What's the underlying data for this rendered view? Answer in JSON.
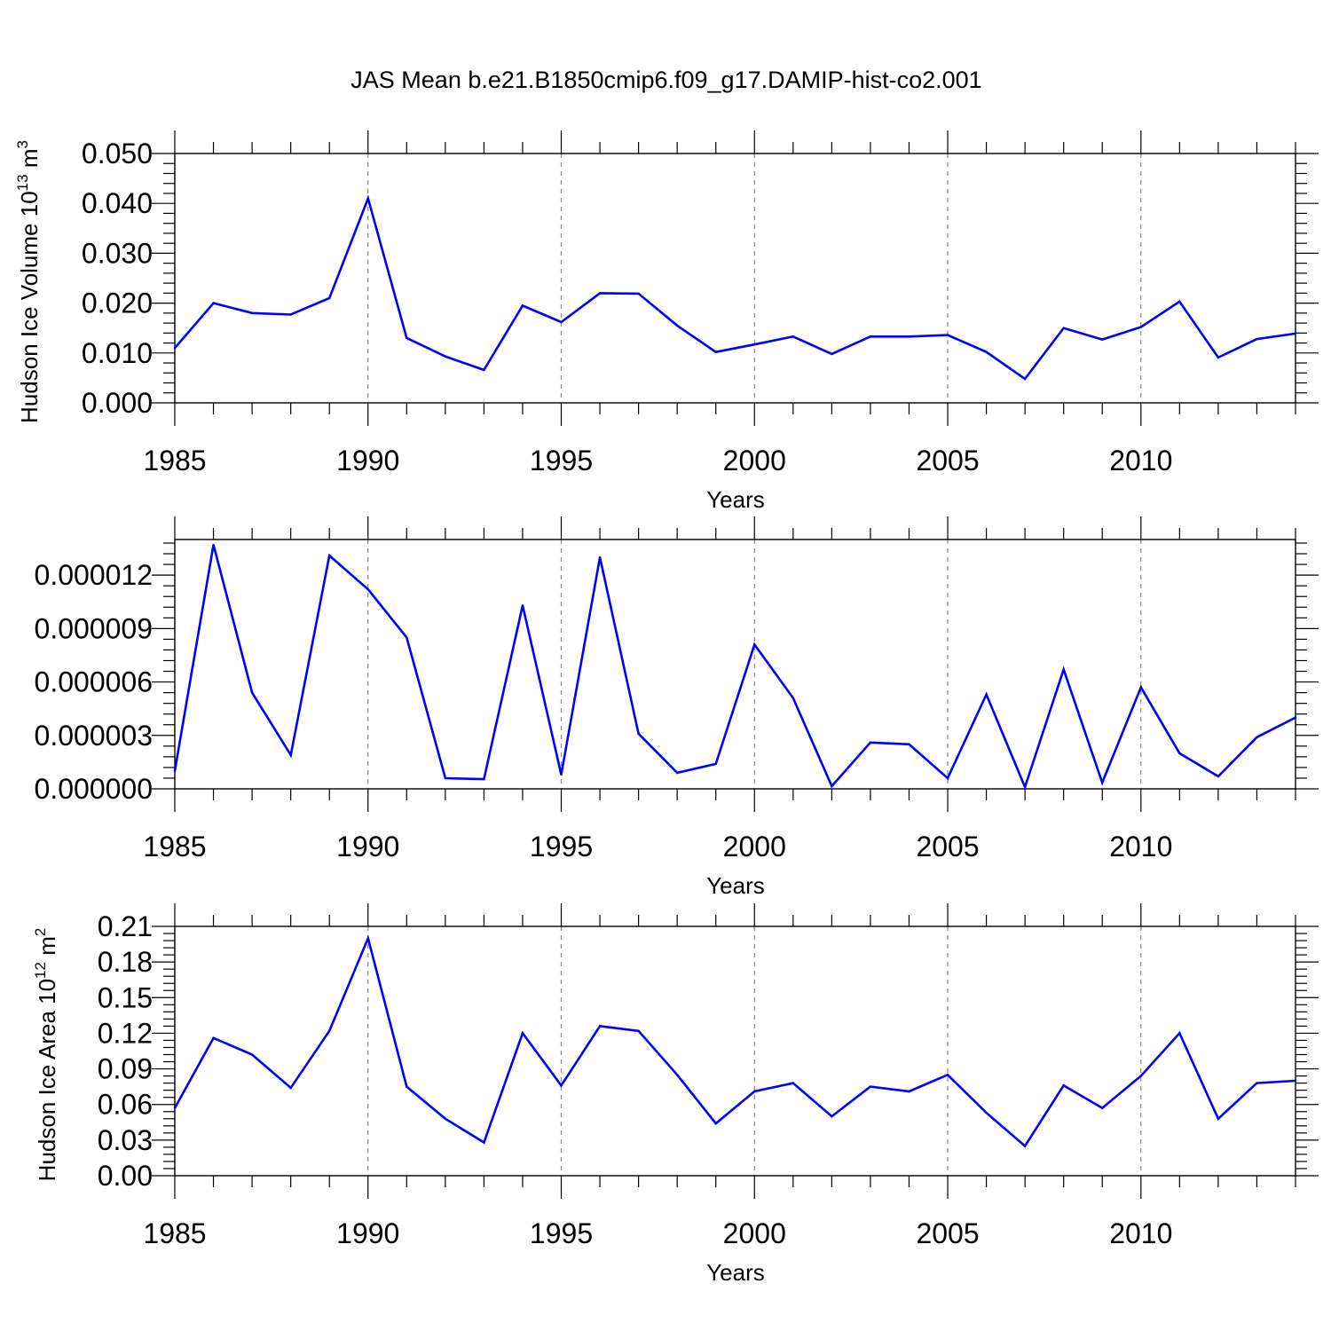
{
  "title": "JAS Mean b.e21.B1850cmip6.f09_g17.DAMIP-hist-co2.001",
  "colors": {
    "line": "#0000ff",
    "axis": "#000000",
    "grid": "#888888"
  },
  "chart_data": [
    {
      "type": "line",
      "ylabel": "Hudson Ice Volume 10",
      "ylabel_sup": "13",
      "ylabel_unit": " m",
      "ylabel_unit_sup": "3",
      "xlabel": "Years",
      "x": [
        1985,
        1986,
        1987,
        1988,
        1989,
        1990,
        1991,
        1992,
        1993,
        1994,
        1995,
        1996,
        1997,
        1998,
        1999,
        2000,
        2001,
        2002,
        2003,
        2004,
        2005,
        2006,
        2007,
        2008,
        2009,
        2010,
        2011,
        2012,
        2013,
        2014
      ],
      "values": [
        0.011,
        0.02,
        0.018,
        0.0177,
        0.021,
        0.041,
        0.013,
        0.0093,
        0.0066,
        0.0195,
        0.0162,
        0.022,
        0.0219,
        0.0155,
        0.0102,
        0.0117,
        0.0133,
        0.0098,
        0.0133,
        0.0133,
        0.0136,
        0.0102,
        0.0048,
        0.015,
        0.0127,
        0.0152,
        0.0203,
        0.0091,
        0.0128,
        0.0139
      ],
      "xlim": [
        1985,
        2014
      ],
      "ylim": [
        0,
        0.05
      ],
      "yticks": [
        "0.000",
        "0.010",
        "0.020",
        "0.030",
        "0.040",
        "0.050"
      ],
      "ytick_values": [
        0,
        0.01,
        0.02,
        0.03,
        0.04,
        0.05
      ],
      "xticks": [
        "1985",
        "1990",
        "1995",
        "2000",
        "2005",
        "2010"
      ],
      "xtick_values": [
        1985,
        1990,
        1995,
        2000,
        2005,
        2010
      ],
      "grid": "vertical dashed at major ticks"
    },
    {
      "type": "line",
      "ylabel": "",
      "xlabel": "Years",
      "x": [
        1985,
        1986,
        1987,
        1988,
        1989,
        1990,
        1991,
        1992,
        1993,
        1994,
        1995,
        1996,
        1997,
        1998,
        1999,
        2000,
        2001,
        2002,
        2003,
        2004,
        2005,
        2006,
        2007,
        2008,
        2009,
        2010,
        2011,
        2012,
        2013,
        2014
      ],
      "values": [
        1e-06,
        1.37e-05,
        5.4e-06,
        1.9e-06,
        1.31e-05,
        1.12e-05,
        8.5e-06,
        6e-07,
        5.5e-07,
        1.03e-05,
        8e-07,
        1.3e-05,
        3.1e-06,
        9e-07,
        1.4e-06,
        8.1e-06,
        5.1e-06,
        1.5e-07,
        2.6e-06,
        2.5e-06,
        6e-07,
        5.3e-06,
        1e-07,
        6.7e-06,
        3.5e-07,
        5.7e-06,
        2e-06,
        7e-07,
        2.9e-06,
        4e-06
      ],
      "xlim": [
        1985,
        2014
      ],
      "ylim": [
        0,
        1.4e-05
      ],
      "yticks": [
        "0.000000",
        "0.000003",
        "0.000006",
        "0.000009",
        "0.000012"
      ],
      "ytick_values": [
        0,
        3e-06,
        6e-06,
        9e-06,
        1.2e-05
      ],
      "xticks": [
        "1985",
        "1990",
        "1995",
        "2000",
        "2005",
        "2010"
      ],
      "xtick_values": [
        1985,
        1990,
        1995,
        2000,
        2005,
        2010
      ],
      "grid": "vertical dashed at major ticks"
    },
    {
      "type": "line",
      "ylabel": "Hudson Ice Area 10",
      "ylabel_sup": "12",
      "ylabel_unit": " m",
      "ylabel_unit_sup": "2",
      "xlabel": "Years",
      "x": [
        1985,
        1986,
        1987,
        1988,
        1989,
        1990,
        1991,
        1992,
        1993,
        1994,
        1995,
        1996,
        1997,
        1998,
        1999,
        2000,
        2001,
        2002,
        2003,
        2004,
        2005,
        2006,
        2007,
        2008,
        2009,
        2010,
        2011,
        2012,
        2013,
        2014
      ],
      "values": [
        0.057,
        0.116,
        0.102,
        0.074,
        0.122,
        0.2,
        0.075,
        0.048,
        0.028,
        0.12,
        0.076,
        0.126,
        0.122,
        0.085,
        0.044,
        0.071,
        0.078,
        0.05,
        0.075,
        0.071,
        0.085,
        0.053,
        0.025,
        0.076,
        0.057,
        0.084,
        0.12,
        0.048,
        0.078,
        0.08
      ],
      "xlim": [
        1985,
        2014
      ],
      "ylim": [
        0,
        0.21
      ],
      "yticks": [
        "0.00",
        "0.03",
        "0.06",
        "0.09",
        "0.12",
        "0.15",
        "0.18",
        "0.21"
      ],
      "ytick_values": [
        0,
        0.03,
        0.06,
        0.09,
        0.12,
        0.15,
        0.18,
        0.21
      ],
      "xticks": [
        "1985",
        "1990",
        "1995",
        "2000",
        "2005",
        "2010"
      ],
      "xtick_values": [
        1985,
        1990,
        1995,
        2000,
        2005,
        2010
      ],
      "grid": "vertical dashed at major ticks"
    }
  ]
}
